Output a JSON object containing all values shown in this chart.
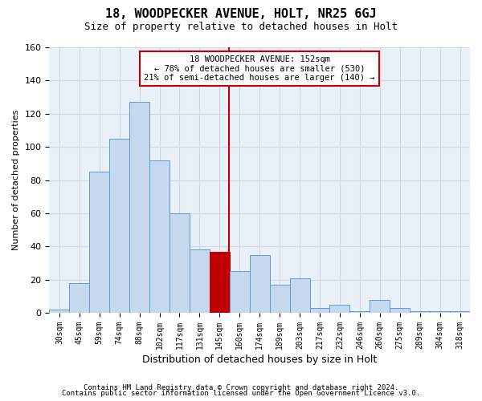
{
  "title": "18, WOODPECKER AVENUE, HOLT, NR25 6GJ",
  "subtitle": "Size of property relative to detached houses in Holt",
  "xlabel": "Distribution of detached houses by size in Holt",
  "ylabel": "Number of detached properties",
  "categories": [
    "30sqm",
    "45sqm",
    "59sqm",
    "74sqm",
    "88sqm",
    "102sqm",
    "117sqm",
    "131sqm",
    "145sqm",
    "160sqm",
    "174sqm",
    "189sqm",
    "203sqm",
    "217sqm",
    "232sqm",
    "246sqm",
    "260sqm",
    "275sqm",
    "289sqm",
    "304sqm",
    "318sqm"
  ],
  "values": [
    2,
    18,
    85,
    105,
    127,
    92,
    60,
    38,
    37,
    25,
    35,
    17,
    21,
    3,
    5,
    1,
    8,
    3,
    1,
    1,
    1
  ],
  "bar_color": "#c5d8ed",
  "bar_edge_color": "#5b9bd5",
  "highlight_bar_index": 8,
  "highlight_bar_color": "#c00000",
  "vline_color": "#c00000",
  "annotation_text": "18 WOODPECKER AVENUE: 152sqm\n← 78% of detached houses are smaller (530)\n21% of semi-detached houses are larger (140) →",
  "annotation_box_color": "#ffffff",
  "annotation_box_edge_color": "#c00000",
  "footer1": "Contains HM Land Registry data © Crown copyright and database right 2024.",
  "footer2": "Contains public sector information licensed under the Open Government Licence v3.0.",
  "ylim": [
    0,
    160
  ],
  "yticks": [
    0,
    20,
    40,
    60,
    80,
    100,
    120,
    140,
    160
  ],
  "background_color": "#ffffff",
  "grid_color": "#d0d8e8",
  "plot_bg_color": "#eaf0f8"
}
